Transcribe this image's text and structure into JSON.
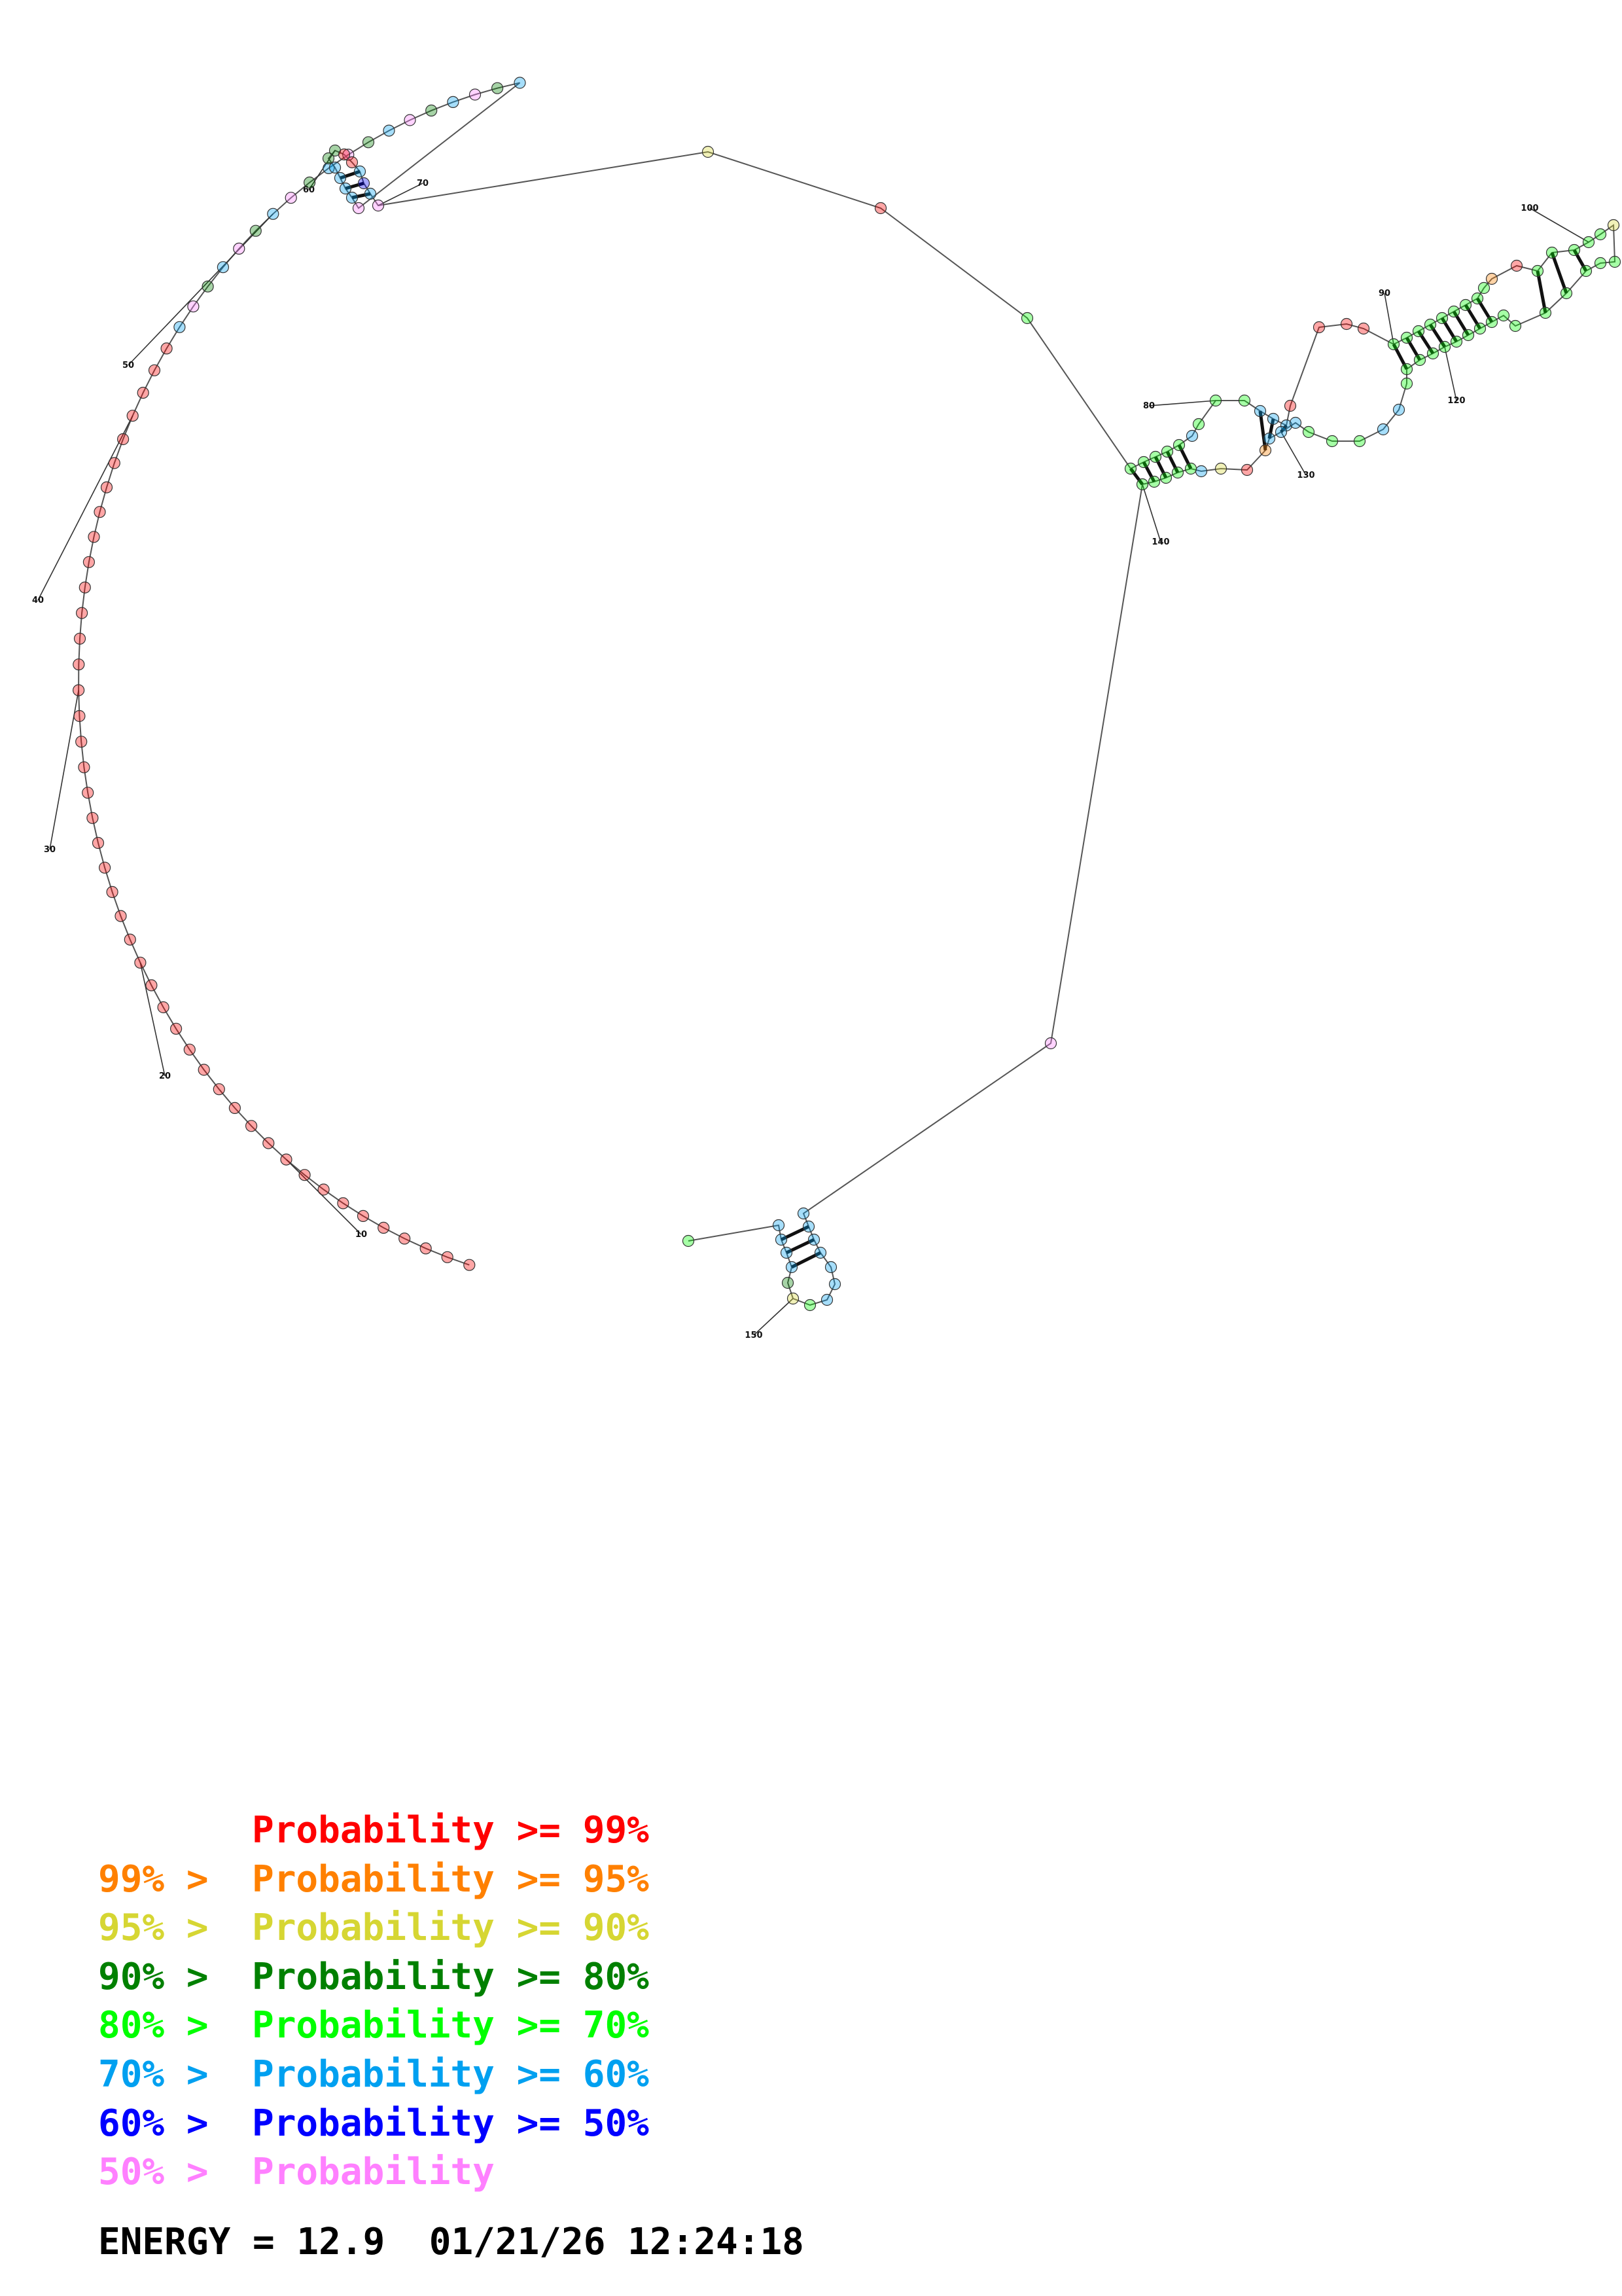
{
  "colors": {
    "p99": "#ff0000",
    "p95": "#ff8000",
    "p90": "#d6d633",
    "p80": "#008000",
    "p70": "#00ff00",
    "p60": "#00a0f0",
    "p50": "#0000ff",
    "plow": "#ff80ff"
  },
  "index_ticks": [
    "10",
    "20",
    "30",
    "40",
    "50",
    "60",
    "70",
    "80",
    "90",
    "100",
    "120",
    "130",
    "140",
    "150"
  ],
  "legend": {
    "rows": [
      {
        "prefix": "",
        "mid": "Probability >= 99%",
        "prefix_color": "p99",
        "mid_color": "p99"
      },
      {
        "prefix": "99% > ",
        "mid": "Probability >= 95%",
        "prefix_color": "p95",
        "mid_color": "p95"
      },
      {
        "prefix": "95% > ",
        "mid": "Probability >= 90%",
        "prefix_color": "p90",
        "mid_color": "p90"
      },
      {
        "prefix": "90% > ",
        "mid": "Probability >= 80%",
        "prefix_color": "p80",
        "mid_color": "p80"
      },
      {
        "prefix": "80% > ",
        "mid": "Probability >= 70%",
        "prefix_color": "p70",
        "mid_color": "p70"
      },
      {
        "prefix": "70% > ",
        "mid": "Probability >= 60%",
        "prefix_color": "p60",
        "mid_color": "p60"
      },
      {
        "prefix": "60% > ",
        "mid": "Probability >= 50%",
        "prefix_color": "p50",
        "mid_color": "p50"
      },
      {
        "prefix": "50% > ",
        "mid": "Probability",
        "prefix_color": "plow",
        "mid_color": "plow"
      }
    ]
  },
  "energy": {
    "label": "ENERGY = 12.9",
    "timestamp": "01/21/26 12:24:18"
  }
}
